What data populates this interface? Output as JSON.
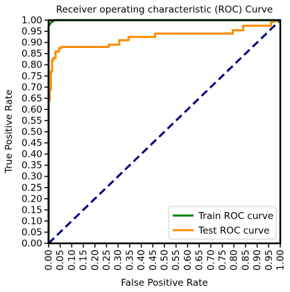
{
  "chart_data": {
    "type": "line",
    "title": "Receiver operating characteristic (ROC) Curve",
    "xlabel": "False Positive Rate",
    "ylabel": "True Positive Rate",
    "xlim": [
      0.0,
      1.0
    ],
    "ylim": [
      0.0,
      1.0
    ],
    "xticks": [
      "0.00",
      "0.05",
      "0.10",
      "0.15",
      "0.20",
      "0.25",
      "0.30",
      "0.35",
      "0.40",
      "0.45",
      "0.50",
      "0.55",
      "0.60",
      "0.65",
      "0.70",
      "0.75",
      "0.80",
      "0.85",
      "0.90",
      "0.95",
      "1.00"
    ],
    "yticks": [
      "0.00",
      "0.05",
      "0.10",
      "0.15",
      "0.20",
      "0.25",
      "0.30",
      "0.35",
      "0.40",
      "0.45",
      "0.50",
      "0.55",
      "0.60",
      "0.65",
      "0.70",
      "0.75",
      "0.80",
      "0.85",
      "0.90",
      "0.95",
      "1.00"
    ],
    "grid": false,
    "legend_position": "lower-right",
    "series": [
      {
        "name": "Train ROC curve",
        "color": "#008000",
        "x": [
          0.0,
          0.0,
          0.005,
          0.01,
          0.02,
          0.025,
          1.0
        ],
        "y": [
          0.0,
          0.975,
          0.98,
          0.99,
          0.995,
          1.0,
          1.0
        ]
      },
      {
        "name": "Test ROC curve",
        "color": "#ff8c00",
        "x": [
          0.0,
          0.0,
          0.005,
          0.005,
          0.01,
          0.01,
          0.015,
          0.015,
          0.02,
          0.02,
          0.03,
          0.03,
          0.045,
          0.045,
          0.055,
          0.055,
          0.26,
          0.26,
          0.305,
          0.305,
          0.345,
          0.345,
          0.46,
          0.46,
          0.795,
          0.795,
          0.84,
          0.84,
          0.96,
          0.96,
          1.0
        ],
        "y": [
          0.0,
          0.64,
          0.64,
          0.69,
          0.69,
          0.77,
          0.77,
          0.82,
          0.82,
          0.83,
          0.83,
          0.86,
          0.86,
          0.875,
          0.875,
          0.88,
          0.88,
          0.89,
          0.89,
          0.91,
          0.91,
          0.925,
          0.925,
          0.94,
          0.94,
          0.955,
          0.955,
          0.975,
          0.975,
          0.99,
          1.0
        ]
      }
    ],
    "reference_line": {
      "color": "#000080",
      "x": [
        0.0,
        1.0
      ],
      "y": [
        0.0,
        1.0
      ]
    }
  }
}
